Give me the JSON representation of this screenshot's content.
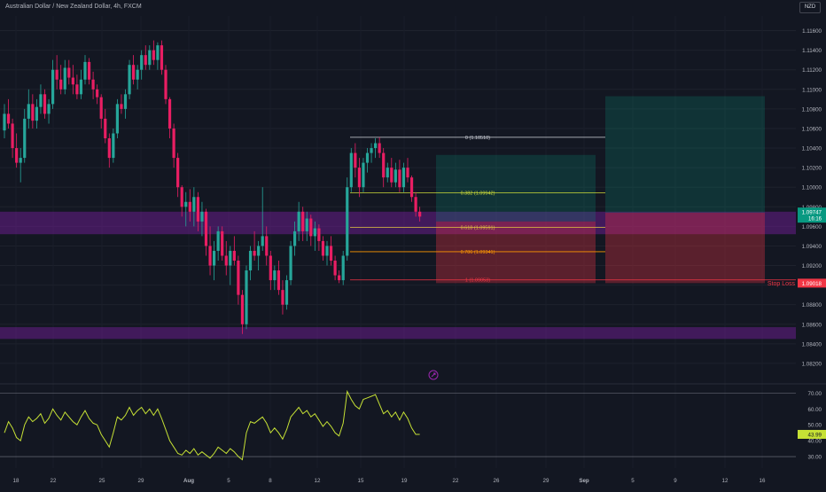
{
  "header": {
    "title": "Australian Dollar / New Zealand Dollar, 4h, FXCM",
    "currency": "NZD"
  },
  "colors": {
    "background": "#131722",
    "up": "#26a69a",
    "down": "#e91e63",
    "zone": "#7b1fa2",
    "rsi_line": "#c6e135",
    "fib_white": "#d1d4dc",
    "fib_yellow": "#cddc39",
    "fib_gold": "#e0c341",
    "fib_orange": "#ff9800",
    "stop_loss": "#f23645",
    "price_tag_current": "#089981"
  },
  "chart_data": [
    {
      "type": "candlestick",
      "title": "Australian Dollar / New Zealand Dollar, 4h, FXCM",
      "y_axis": {
        "range": [
          1.08,
          1.1175
        ],
        "ticks": [
          "1.11600",
          "1.11400",
          "1.11200",
          "1.11000",
          "1.10800",
          "1.10600",
          "1.10400",
          "1.10200",
          "1.10000",
          "1.09800",
          "1.09600",
          "1.09400",
          "1.09200",
          "1.09000",
          "1.08800",
          "1.08600",
          "1.08400",
          "1.08200"
        ]
      },
      "x_axis": {
        "ticks": [
          "18",
          "22",
          "25",
          "29",
          "Aug",
          "5",
          "8",
          "12",
          "15",
          "19",
          "22",
          "26",
          "29",
          "Sep",
          "5",
          "9",
          "12",
          "16"
        ]
      },
      "candles_ohlc": [
        [
          1.1058,
          1.1085,
          1.105,
          1.1075
        ],
        [
          1.1075,
          1.109,
          1.106,
          1.1065
        ],
        [
          1.1065,
          1.107,
          1.103,
          1.104
        ],
        [
          1.104,
          1.1055,
          1.102,
          1.1025
        ],
        [
          1.1025,
          1.104,
          1.1005,
          1.103
        ],
        [
          1.103,
          1.108,
          1.1025,
          1.107
        ],
        [
          1.107,
          1.11,
          1.106,
          1.1085
        ],
        [
          1.1085,
          1.1095,
          1.106,
          1.1068
        ],
        [
          1.1068,
          1.109,
          1.106,
          1.1082
        ],
        [
          1.1082,
          1.1105,
          1.1075,
          1.1095
        ],
        [
          1.1095,
          1.11,
          1.107,
          1.1075
        ],
        [
          1.1075,
          1.109,
          1.1065,
          1.1085
        ],
        [
          1.1085,
          1.113,
          1.108,
          1.112
        ],
        [
          1.112,
          1.1135,
          1.11,
          1.111
        ],
        [
          1.111,
          1.1125,
          1.1095,
          1.11
        ],
        [
          1.11,
          1.113,
          1.1095,
          1.1122
        ],
        [
          1.1122,
          1.113,
          1.1105,
          1.1112
        ],
        [
          1.1112,
          1.1125,
          1.1095,
          1.1105
        ],
        [
          1.1105,
          1.1115,
          1.109,
          1.1095
        ],
        [
          1.1095,
          1.112,
          1.109,
          1.111
        ],
        [
          1.111,
          1.1135,
          1.1105,
          1.1128
        ],
        [
          1.1128,
          1.1132,
          1.1105,
          1.111
        ],
        [
          1.111,
          1.1118,
          1.109,
          1.11
        ],
        [
          1.11,
          1.1105,
          1.1085,
          1.1092
        ],
        [
          1.1092,
          1.1095,
          1.106,
          1.107
        ],
        [
          1.107,
          1.108,
          1.1045,
          1.105
        ],
        [
          1.105,
          1.1055,
          1.102,
          1.103
        ],
        [
          1.103,
          1.106,
          1.1025,
          1.1055
        ],
        [
          1.1055,
          1.109,
          1.105,
          1.1085
        ],
        [
          1.1085,
          1.1095,
          1.1075,
          1.108
        ],
        [
          1.108,
          1.11,
          1.107,
          1.1095
        ],
        [
          1.1095,
          1.113,
          1.109,
          1.1125
        ],
        [
          1.1125,
          1.1135,
          1.1105,
          1.111
        ],
        [
          1.111,
          1.1125,
          1.11,
          1.112
        ],
        [
          1.112,
          1.114,
          1.111,
          1.1135
        ],
        [
          1.1135,
          1.1145,
          1.112,
          1.1125
        ],
        [
          1.1125,
          1.1145,
          1.112,
          1.114
        ],
        [
          1.114,
          1.115,
          1.1125,
          1.113
        ],
        [
          1.113,
          1.1148,
          1.112,
          1.1145
        ],
        [
          1.1145,
          1.115,
          1.1115,
          1.112
        ],
        [
          1.112,
          1.1125,
          1.1085,
          1.109
        ],
        [
          1.109,
          1.1092,
          1.105,
          1.106
        ],
        [
          1.106,
          1.1065,
          1.102,
          1.103
        ],
        [
          1.103,
          1.1035,
          1.099,
          1.1
        ],
        [
          1.1,
          1.1002,
          1.097,
          1.098
        ],
        [
          1.098,
          1.0995,
          1.096,
          1.0985
        ],
        [
          1.0985,
          1.0998,
          1.0965,
          1.0975
        ],
        [
          1.0975,
          1.1,
          1.096,
          1.099
        ],
        [
          1.099,
          1.0995,
          1.0955,
          1.0965
        ],
        [
          1.0965,
          1.0985,
          1.095,
          1.0975
        ],
        [
          1.0975,
          1.0978,
          1.093,
          1.094
        ],
        [
          1.094,
          1.096,
          1.091,
          1.092
        ],
        [
          1.092,
          1.0945,
          1.0905,
          1.0935
        ],
        [
          1.0935,
          1.096,
          1.0925,
          1.0955
        ],
        [
          1.0955,
          1.096,
          1.0925,
          1.093
        ],
        [
          1.093,
          1.0945,
          1.091,
          1.092
        ],
        [
          1.092,
          1.094,
          1.09,
          1.0935
        ],
        [
          1.0935,
          1.095,
          1.092,
          1.0925
        ],
        [
          1.0925,
          1.093,
          1.088,
          1.089
        ],
        [
          1.089,
          1.0895,
          1.085,
          1.086
        ],
        [
          1.086,
          1.092,
          1.0855,
          1.0915
        ],
        [
          1.0915,
          1.094,
          1.0905,
          1.0935
        ],
        [
          1.0935,
          1.0955,
          1.0925,
          1.093
        ],
        [
          1.093,
          1.0945,
          1.0915,
          1.094
        ],
        [
          1.094,
          1.1,
          1.0935,
          1.095
        ],
        [
          1.095,
          1.096,
          1.092,
          1.093
        ],
        [
          1.093,
          1.0935,
          1.0895,
          1.0905
        ],
        [
          1.0905,
          1.092,
          1.0895,
          1.0915
        ],
        [
          1.0915,
          1.0925,
          1.089,
          1.0895
        ],
        [
          1.0895,
          1.0905,
          1.087,
          1.088
        ],
        [
          1.088,
          1.091,
          1.0875,
          1.0905
        ],
        [
          1.0905,
          1.0945,
          1.09,
          1.094
        ],
        [
          1.094,
          1.0965,
          1.093,
          1.0955
        ],
        [
          1.0955,
          1.0985,
          1.0945,
          1.0975
        ],
        [
          1.0975,
          1.098,
          1.0945,
          1.0955
        ],
        [
          1.0955,
          1.0975,
          1.0945,
          1.0968
        ],
        [
          1.0968,
          1.0972,
          1.094,
          1.095
        ],
        [
          1.095,
          1.0965,
          1.0935,
          1.0958
        ],
        [
          1.0958,
          1.0962,
          1.0935,
          1.0945
        ],
        [
          1.0945,
          1.095,
          1.0925,
          1.093
        ],
        [
          1.093,
          1.0945,
          1.092,
          1.094
        ],
        [
          1.094,
          1.095,
          1.092,
          1.0925
        ],
        [
          1.0925,
          1.093,
          1.0905,
          1.091
        ],
        [
          1.091,
          1.0915,
          1.0902,
          1.0905
        ],
        [
          1.0905,
          1.0935,
          1.09,
          1.093
        ],
        [
          1.093,
          1.101,
          1.0925,
          1.1
        ],
        [
          1.1,
          1.104,
          1.0995,
          1.1035
        ],
        [
          1.1035,
          1.1045,
          1.101,
          1.102
        ],
        [
          1.102,
          1.103,
          1.099,
          1.1
        ],
        [
          1.1,
          1.103,
          1.0995,
          1.1025
        ],
        [
          1.1025,
          1.104,
          1.1015,
          1.1035
        ],
        [
          1.1035,
          1.1045,
          1.1025,
          1.104
        ],
        [
          1.104,
          1.105,
          1.103,
          1.1045
        ],
        [
          1.1045,
          1.1051,
          1.103,
          1.1035
        ],
        [
          1.1035,
          1.104,
          1.1,
          1.101
        ],
        [
          1.101,
          1.1025,
          1.1005,
          1.102
        ],
        [
          1.102,
          1.103,
          1.1,
          1.1005
        ],
        [
          1.1005,
          1.1025,
          1.1,
          1.1018
        ],
        [
          1.1018,
          1.1028,
          1.0995,
          1.1
        ],
        [
          1.1,
          1.1025,
          1.0995,
          1.102
        ],
        [
          1.102,
          1.103,
          1.1005,
          1.101
        ],
        [
          1.101,
          1.1012,
          1.0985,
          1.099
        ],
        [
          1.099,
          1.0995,
          1.097,
          1.0975
        ],
        [
          1.0975,
          1.098,
          1.0965,
          1.097
        ]
      ]
    },
    {
      "type": "line",
      "title": "RSI",
      "y_axis": {
        "range": [
          25,
          73
        ],
        "ticks": [
          "70.00",
          "60.00",
          "50.00",
          "40.00",
          "30.00"
        ],
        "guides": [
          70,
          30
        ]
      },
      "x_axis": {
        "ticks": [
          "18",
          "22",
          "25",
          "29",
          "Aug",
          "5",
          "8",
          "12",
          "15",
          "19",
          "22",
          "26",
          "29",
          "Sep",
          "5",
          "9",
          "12",
          "16"
        ]
      },
      "series": [
        {
          "values": [
            45,
            52,
            48,
            42,
            40,
            50,
            55,
            52,
            54,
            57,
            51,
            54,
            60,
            56,
            53,
            58,
            55,
            52,
            50,
            55,
            59,
            54,
            51,
            50,
            44,
            40,
            36,
            45,
            55,
            53,
            56,
            61,
            56,
            59,
            61,
            57,
            60,
            56,
            60,
            54,
            47,
            40,
            36,
            32,
            31,
            34,
            32,
            35,
            31,
            33,
            31,
            29,
            32,
            36,
            34,
            32,
            35,
            33,
            30,
            28,
            45,
            52,
            51,
            53,
            55,
            51,
            45,
            48,
            45,
            41,
            47,
            55,
            58,
            61,
            57,
            59,
            55,
            57,
            53,
            49,
            52,
            49,
            45,
            43,
            51,
            71,
            66,
            62,
            60,
            66,
            67,
            68,
            69,
            63,
            57,
            59,
            55,
            58,
            53,
            58,
            54,
            48,
            44,
            43.99
          ],
          "last_value": "43.99"
        }
      ]
    }
  ],
  "annotations": {
    "fib_levels": [
      {
        "label": "0 (1.10510)",
        "price": 1.1051
      },
      {
        "label": "0.382 (1.09942)",
        "price": 1.09942
      },
      {
        "label": "0.618 (1.09591)",
        "price": 1.09591
      },
      {
        "label": "0.786 (1.09341)",
        "price": 1.09341
      },
      {
        "label": "1 (1.09053)",
        "price": 1.09053
      }
    ],
    "supply_demand_zones": [
      {
        "price_top": 1.0975,
        "price_bottom": 1.0952
      },
      {
        "price_top": 1.0857,
        "price_bottom": 1.0845
      }
    ],
    "position_tools": [
      {
        "entry": 1.0965,
        "target": 1.1033,
        "stop": 1.0902
      },
      {
        "entry": 1.0974,
        "target": 1.1093,
        "stop": 1.0902
      }
    ],
    "stop_loss_label": "Stop Loss",
    "price_tags": {
      "current_price": "1.09747",
      "countdown": "16:16",
      "stop_price": "1.09018"
    }
  }
}
